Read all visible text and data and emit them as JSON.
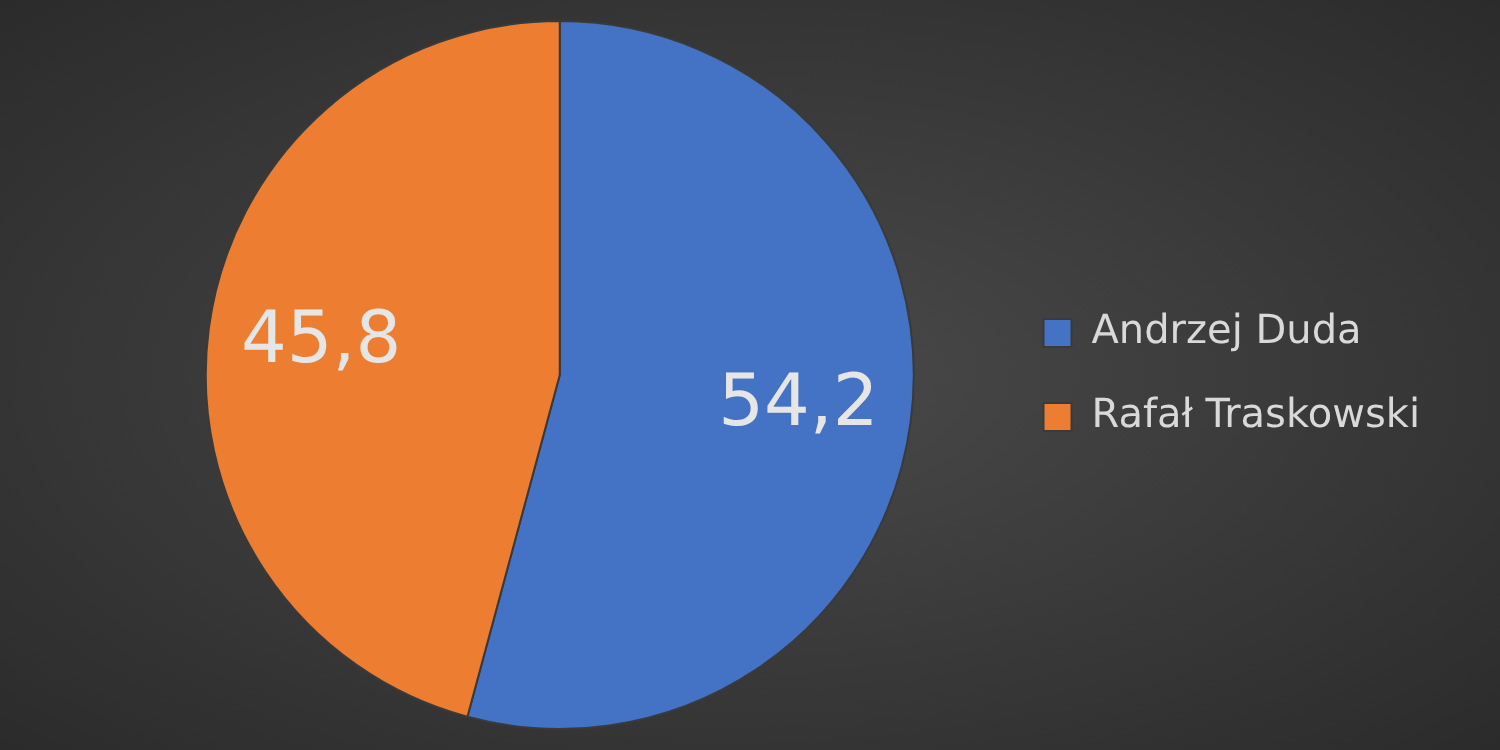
{
  "chart_data": {
    "type": "pie",
    "categories": [
      "Andrzej Duda",
      "Rafał Traskowski"
    ],
    "values": [
      54.2,
      45.8
    ],
    "colors": [
      "#4472c4",
      "#ed7d31"
    ],
    "value_labels": [
      "54,2",
      "45,8"
    ],
    "legend": "right"
  }
}
